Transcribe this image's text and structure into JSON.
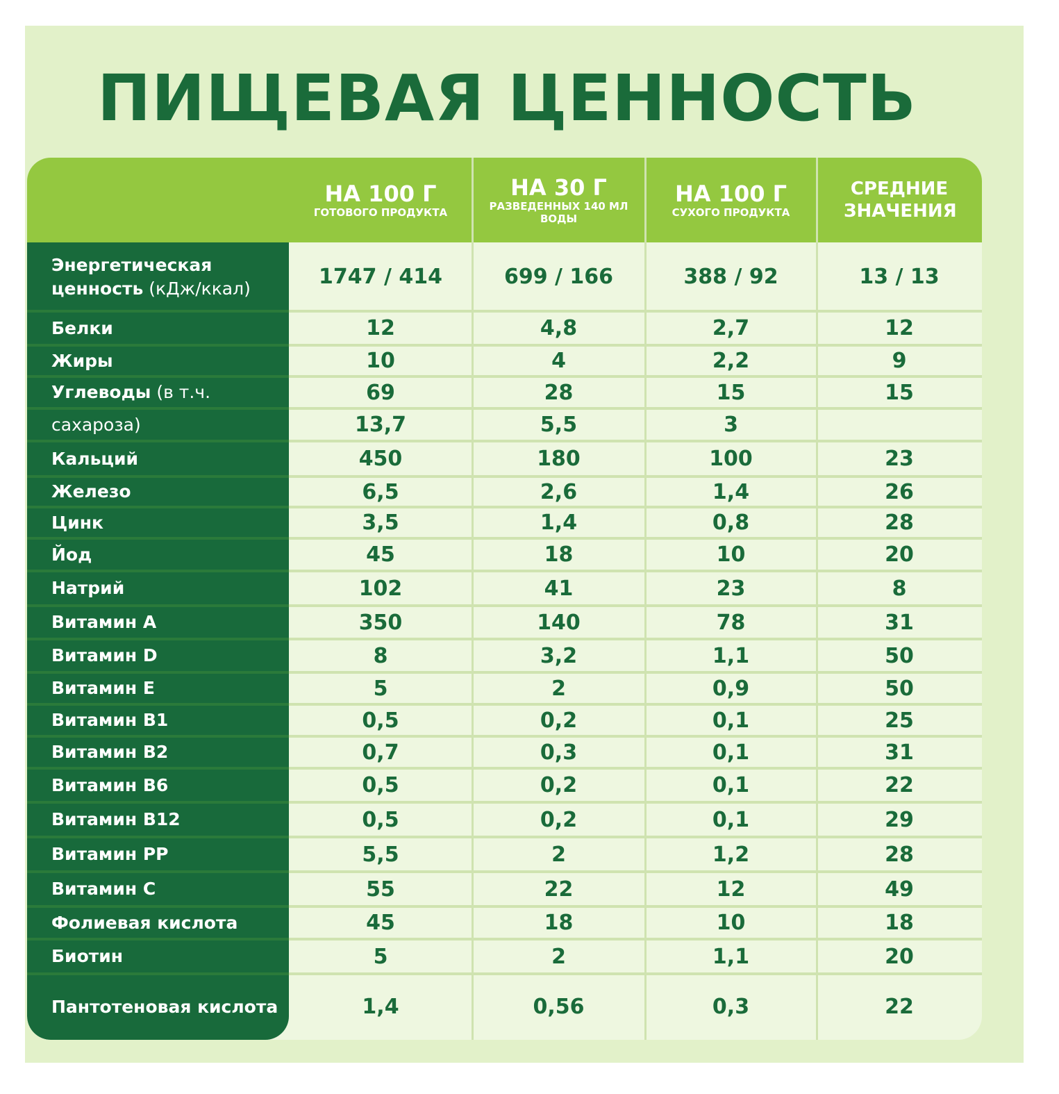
{
  "title": "ПИЩЕВАЯ ЦЕННОСТЬ",
  "columns": [
    {
      "main": "НА 100 Г",
      "sub": "ГОТОВОГО ПРОДУКТА"
    },
    {
      "main": "НА 30 Г",
      "sub": "РАЗВЕДЕННЫХ 140 МЛ ВОДЫ"
    },
    {
      "main": "НА 100 Г",
      "sub": "СУХОГО ПРОДУКТА"
    },
    {
      "main": "СРЕДНИЕ ЗНАЧЕНИЯ",
      "sub": ""
    }
  ],
  "rows": [
    {
      "label": "Энергетическая ценность",
      "note": "(кДж/ккал)",
      "values": [
        "1747 / 414",
        "699 / 166",
        "388 / 92",
        "13 / 13"
      ]
    },
    {
      "label": "Белки",
      "note": "",
      "values": [
        "12",
        "4,8",
        "2,7",
        "12"
      ]
    },
    {
      "label": "Жиры",
      "note": "",
      "values": [
        "10",
        "4",
        "2,2",
        "9"
      ]
    },
    {
      "label": "Углеводы",
      "note": "(в т.ч.",
      "values": [
        "69",
        "28",
        "15",
        "15"
      ]
    },
    {
      "label": "",
      "note": "сахароза)",
      "values": [
        "13,7",
        "5,5",
        "3",
        ""
      ]
    },
    {
      "label": "Кальций",
      "note": "",
      "values": [
        "450",
        "180",
        "100",
        "23"
      ]
    },
    {
      "label": "Железо",
      "note": "",
      "values": [
        "6,5",
        "2,6",
        "1,4",
        "26"
      ]
    },
    {
      "label": "Цинк",
      "note": "",
      "values": [
        "3,5",
        "1,4",
        "0,8",
        "28"
      ]
    },
    {
      "label": "Йод",
      "note": "",
      "values": [
        "45",
        "18",
        "10",
        "20"
      ]
    },
    {
      "label": "Натрий",
      "note": "",
      "values": [
        "102",
        "41",
        "23",
        "8"
      ]
    },
    {
      "label": "Витамин А",
      "note": "",
      "values": [
        "350",
        "140",
        "78",
        "31"
      ]
    },
    {
      "label": "Витамин D",
      "note": "",
      "values": [
        "8",
        "3,2",
        "1,1",
        "50"
      ]
    },
    {
      "label": "Витамин Е",
      "note": "",
      "values": [
        "5",
        "2",
        "0,9",
        "50"
      ]
    },
    {
      "label": "Витамин B1",
      "note": "",
      "values": [
        "0,5",
        "0,2",
        "0,1",
        "25"
      ]
    },
    {
      "label": "Витамин B2",
      "note": "",
      "values": [
        "0,7",
        "0,3",
        "0,1",
        "31"
      ]
    },
    {
      "label": "Витамин B6",
      "note": "",
      "values": [
        "0,5",
        "0,2",
        "0,1",
        "22"
      ]
    },
    {
      "label": "Витамин B12",
      "note": "",
      "values": [
        "0,5",
        "0,2",
        "0,1",
        "29"
      ]
    },
    {
      "label": "Витамин PP",
      "note": "",
      "values": [
        "5,5",
        "2",
        "1,2",
        "28"
      ]
    },
    {
      "label": "Витамин С",
      "note": "",
      "values": [
        "55",
        "22",
        "12",
        "49"
      ]
    },
    {
      "label": "Фолиевая кислота",
      "note": "",
      "values": [
        "45",
        "18",
        "10",
        "18"
      ]
    },
    {
      "label": "Биотин",
      "note": "",
      "values": [
        "5",
        "2",
        "1,1",
        "20"
      ]
    },
    {
      "label": "Пантотеновая кислота",
      "note": "",
      "values": [
        "1,4",
        "0,56",
        "0,3",
        "22"
      ]
    }
  ]
}
